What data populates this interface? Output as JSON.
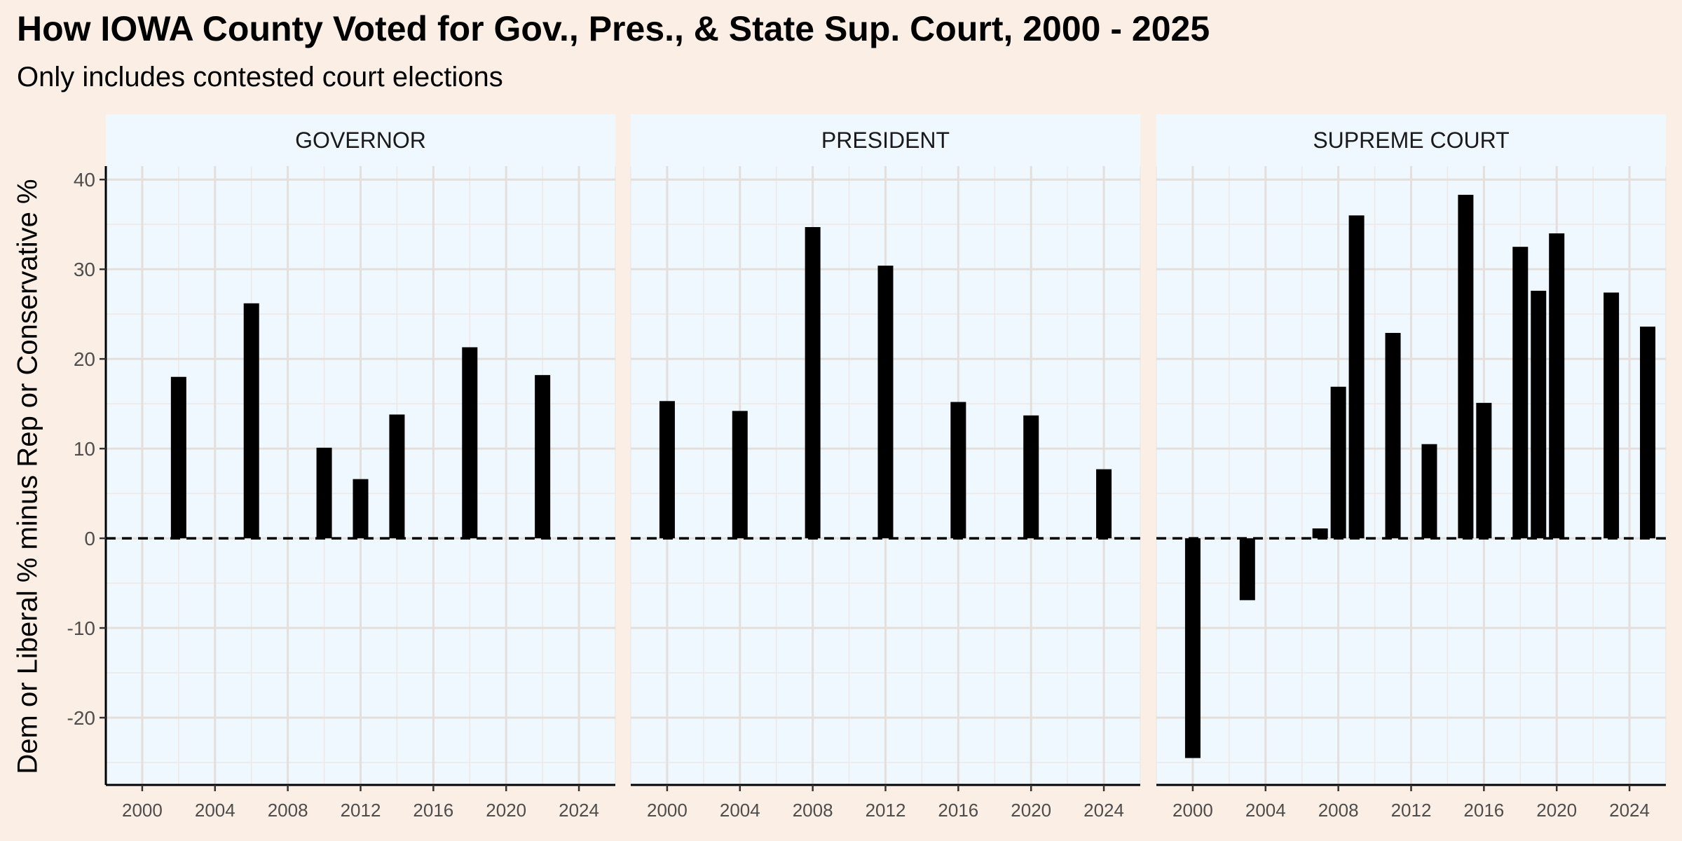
{
  "chart_data": {
    "type": "bar",
    "title": "How IOWA County Voted for Gov., Pres., & State Sup. Court, 2000 - 2025",
    "subtitle": "Only includes contested court elections",
    "ylabel": "Dem or Liberal % minus Rep or Conservative %",
    "xlabel": "",
    "ylim": [
      -27.5,
      41.5
    ],
    "xlim": [
      1998,
      2026
    ],
    "y_ticks": [
      -20,
      -10,
      0,
      10,
      20,
      30,
      40
    ],
    "x_ticks": [
      2000,
      2004,
      2008,
      2012,
      2016,
      2020,
      2024
    ],
    "reference_line": {
      "y": 0,
      "style": "dashed"
    },
    "grid": true,
    "panel_background": "#eff7ff",
    "page_background": "#fbefe5",
    "bar_color": "#000000",
    "panels": [
      {
        "name": "GOVERNOR",
        "x": [
          2002,
          2006,
          2010,
          2012,
          2014,
          2018,
          2022
        ],
        "values": [
          18.0,
          26.2,
          10.1,
          6.6,
          13.8,
          21.3,
          18.2
        ]
      },
      {
        "name": "PRESIDENT",
        "x": [
          2000,
          2004,
          2008,
          2012,
          2016,
          2020,
          2024
        ],
        "values": [
          15.3,
          14.2,
          34.7,
          30.4,
          15.2,
          13.7,
          7.7
        ]
      },
      {
        "name": "SUPREME COURT",
        "x": [
          2000,
          2003,
          2007,
          2008,
          2009,
          2011,
          2013,
          2015,
          2016,
          2018,
          2019,
          2020,
          2023,
          2025
        ],
        "values": [
          -24.5,
          -6.9,
          1.1,
          16.9,
          36.0,
          22.9,
          10.5,
          38.3,
          15.1,
          32.5,
          27.6,
          34.0,
          27.4,
          23.6
        ]
      }
    ]
  }
}
